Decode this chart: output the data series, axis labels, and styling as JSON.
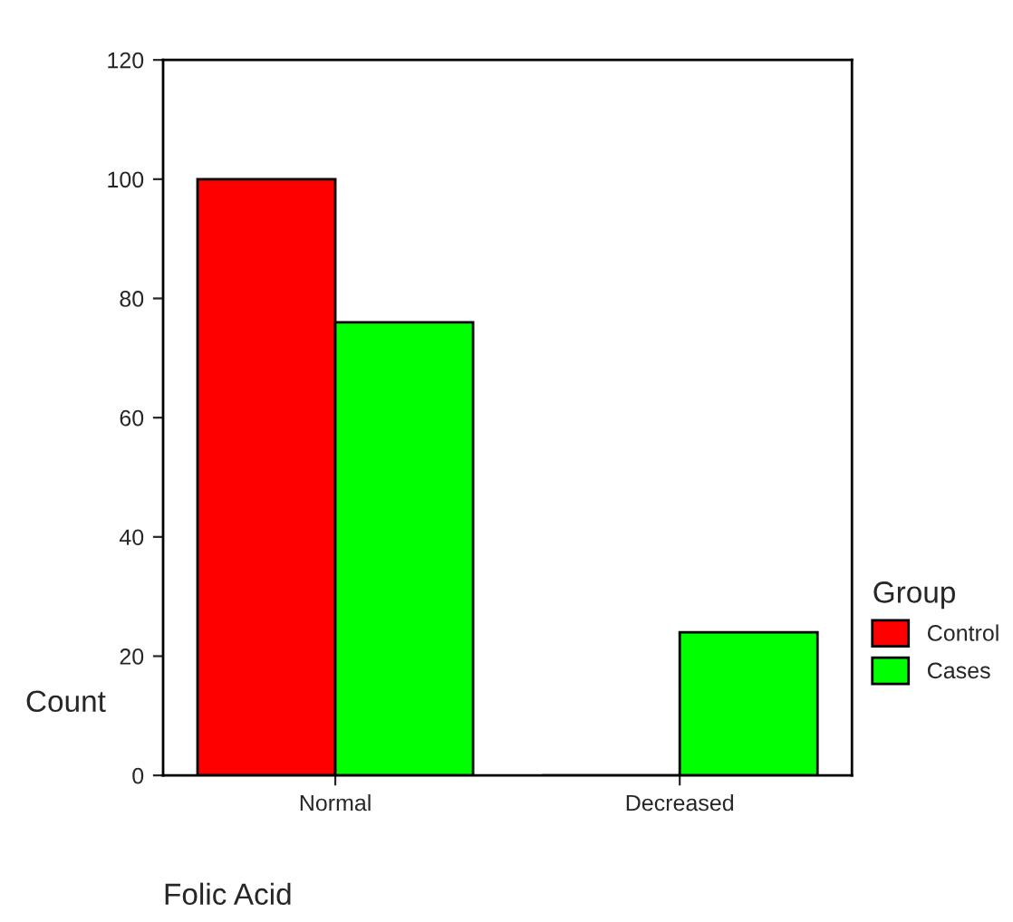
{
  "chart_data": {
    "type": "bar",
    "xlabel": "Folic Acid",
    "ylabel": "Count",
    "legend_title": "Group",
    "categories": [
      "Normal",
      "Decreased"
    ],
    "series": [
      {
        "name": "Control",
        "color": "#ff0000",
        "values": [
          100,
          0
        ]
      },
      {
        "name": "Cases",
        "color": "#00ff00",
        "values": [
          76,
          24
        ]
      }
    ],
    "ylim": [
      0,
      120
    ],
    "yticks": [
      0,
      20,
      40,
      60,
      80,
      100,
      120
    ],
    "grid": false,
    "legend": "right"
  }
}
